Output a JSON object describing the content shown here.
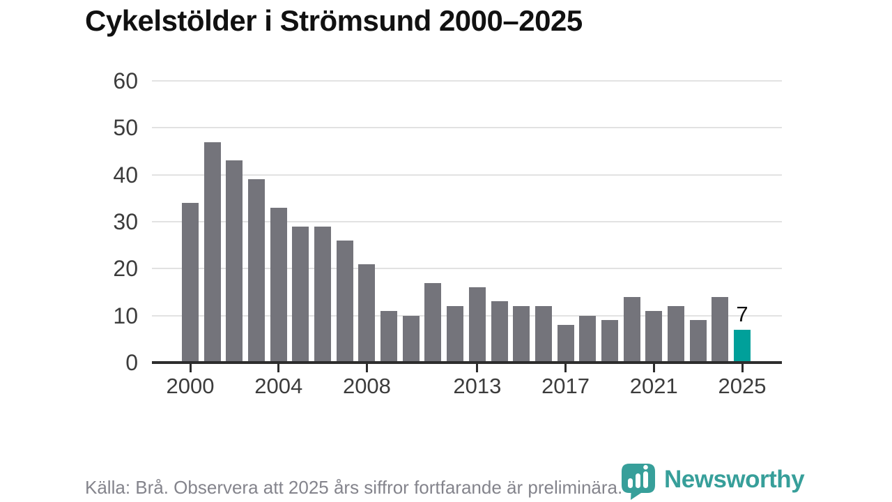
{
  "title": "Cykelstölder i Strömsund 2000–2025",
  "chart_data": {
    "type": "bar",
    "x": [
      2000,
      2001,
      2002,
      2003,
      2004,
      2005,
      2006,
      2007,
      2008,
      2009,
      2010,
      2011,
      2012,
      2013,
      2014,
      2015,
      2016,
      2017,
      2018,
      2019,
      2020,
      2021,
      2022,
      2023,
      2024,
      2025
    ],
    "values": [
      34,
      47,
      43,
      39,
      33,
      29,
      29,
      26,
      21,
      11,
      10,
      17,
      12,
      16,
      13,
      12,
      12,
      8,
      10,
      9,
      14,
      11,
      12,
      9,
      14,
      7
    ],
    "title": "Cykelstölder i Strömsund 2000–2025",
    "xlabel": "",
    "ylabel": "",
    "ylim": [
      0,
      60
    ],
    "yticks": [
      0,
      10,
      20,
      30,
      40,
      50,
      60
    ],
    "xticks": [
      2000,
      2004,
      2008,
      2013,
      2017,
      2021,
      2025
    ],
    "grid": true,
    "legend": false,
    "bar_color": "#74747b",
    "highlight": {
      "year": 2025,
      "value": 7,
      "label": "7",
      "color": "#00a09a"
    }
  },
  "footer": {
    "source": "Källa: Brå. Observera att 2025 års siffror fortfarande är preliminära."
  },
  "logo": {
    "name": "Newsworthy",
    "color": "#379f9a",
    "icon": "newsworthy-speech-bubble-bars-icon"
  },
  "colors": {
    "title": "#111111",
    "bar": "#74747b",
    "highlight": "#00a09a",
    "gridline": "#e2e2e2",
    "axis_line": "#2d2d2d",
    "tick_label": "#3c3c3c",
    "footer_text": "#84848c",
    "logo_teal": "#379f9a",
    "background": "#ffffff"
  }
}
